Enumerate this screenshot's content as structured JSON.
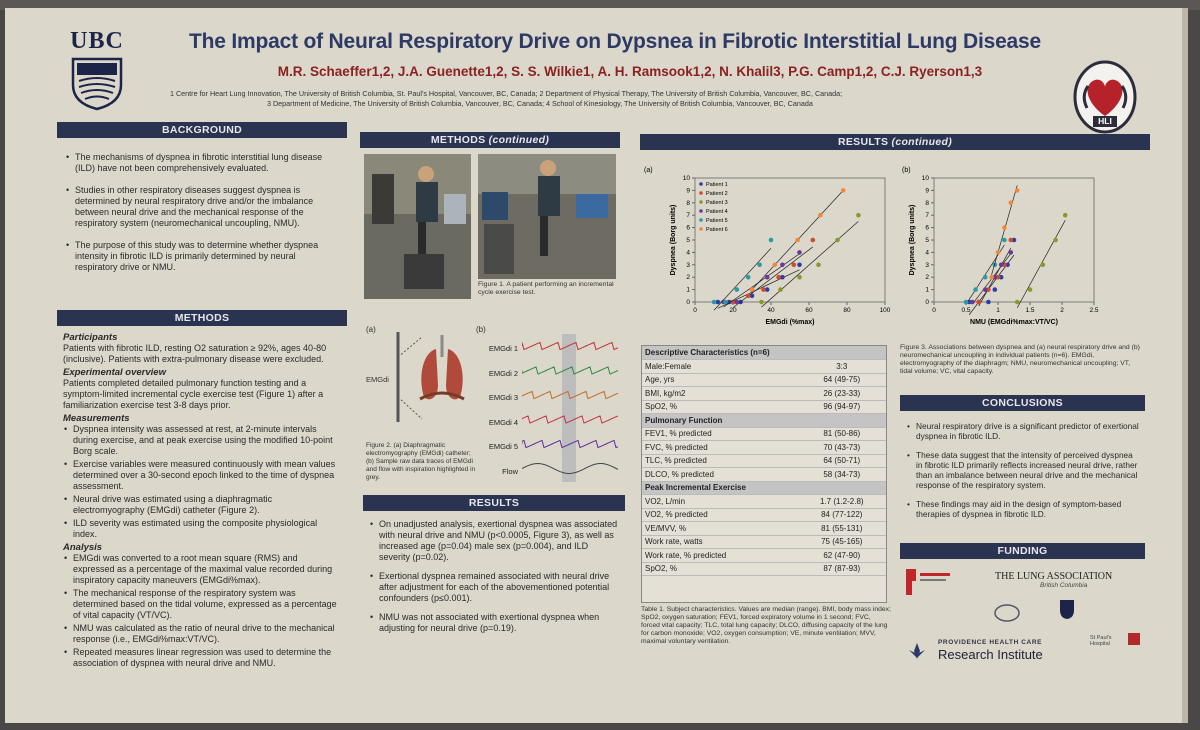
{
  "header": {
    "logo_left": "UBC",
    "logo_right": "HLI",
    "title": "The Impact of Neural Respiratory Drive on Dypsnea in Fibrotic Interstitial Lung Disease",
    "authors": "M.R. Schaeffer1,2, J.A. Guenette1,2, S. S. Wilkie1, A. H. Ramsook1,2, N. Khalil3, P.G. Camp1,2, C.J. Ryerson1,3",
    "affiliation_1": "1 Centre for Heart Lung Innovation, The University of British Columbia, St. Paul's Hospital, Vancouver, BC, Canada; 2 Department of Physical Therapy, The University of British Columbia, Vancouver, BC, Canada;",
    "affiliation_2": "3 Department of Medicine, The University of British Columbia, Vancouver, BC, Canada; 4 School of Kinesiology, The University of British Columbia, Vancouver, BC, Canada"
  },
  "background": {
    "heading": "BACKGROUND",
    "bullets": [
      "The mechanisms of dyspnea in fibrotic interstitial lung disease (ILD) have not been comprehensively evaluated.",
      "Studies in other respiratory diseases suggest dyspnea is determined by neural respiratory drive and/or the imbalance between neural drive and the mechanical response of the respiratory system (neuromechanical uncoupling, NMU).",
      "The purpose of this study was to determine whether dyspnea intensity in fibrotic ILD is primarily determined by neural respiratory drive or NMU."
    ]
  },
  "methods": {
    "heading": "METHODS",
    "participants_title": "Participants",
    "participants_text": "Patients with fibrotic ILD, resting O2 saturation ≥ 92%, ages 40-80 (inclusive). Patients with extra-pulmonary disease were excluded.",
    "overview_title": "Experimental overview",
    "overview_text": "Patients completed detailed pulmonary function testing and a symptom-limited incremental cycle exercise test (Figure 1) after a familiarization exercise test 3-8 days prior.",
    "measurements_title": "Measurements",
    "measurements": [
      "Dyspnea intensity was assessed at rest, at 2-minute intervals during exercise, and at peak exercise using the modified 10-point Borg scale.",
      "Exercise variables were measured continuously with mean values determined over a 30-second epoch linked to the time of dyspnea assessment.",
      "Neural drive was estimated using a diaphragmatic electromyography (EMGdi) catheter (Figure 2).",
      "ILD severity was estimated using the composite physiological index."
    ],
    "analysis_title": "Analysis",
    "analysis": [
      "EMGdi was converted to a root mean square (RMS) and expressed as a percentage of the maximal value recorded during inspiratory capacity maneuvers (EMGdi%max).",
      "The mechanical response of the respiratory system was determined based on the tidal volume, expressed as a percentage of vital capacity (VT/VC).",
      "NMU was calculated as the ratio of neural drive to the mechanical response (i.e., EMGdi%max:VT/VC).",
      "Repeated measures linear regression was used to determine the association of dyspnea with neural drive and NMU."
    ]
  },
  "methods_cont": {
    "heading": "METHODS",
    "heading_suffix": "(continued)",
    "figure1_caption": "Figure 1. A patient performing an incremental cycle exercise test.",
    "panel_a": "(a)",
    "panel_b": "(b)",
    "emgdi_label": "EMGdi",
    "traces": [
      "EMGdi 1",
      "EMGdi 2",
      "EMGdi 3",
      "EMGdi 4",
      "EMGdi 5",
      "Flow"
    ],
    "figure2_caption": "Figure 2. (a) Diaphragmatic electromyography (EMGdi) catheter; (b) Sample raw data traces of EMGdi and flow with inspiration highlighted in grey."
  },
  "results": {
    "heading": "RESULTS",
    "bullets": [
      "On unadjusted analysis, exertional dyspnea was associated with neural drive and NMU (p<0.0005, Figure 3), as well as increased age (p=0.04) male sex (p=0.004), and ILD severity (p=0.02).",
      "Exertional dyspnea remained associated with neural drive after adjustment for each of the abovementioned potential confounders (p≤0.001).",
      "NMU was not associated with exertional dyspnea when adjusting for neural drive (p=0.19)."
    ]
  },
  "results_cont": {
    "heading": "RESULTS",
    "heading_suffix": "(continued)",
    "figure3_caption": "Figure 3. Associations between dyspnea and (a) neural respiratory drive and (b) neuromechanical uncoupling in individual patients (n=6). EMGdi, electromyography of the diaphragm; NMU, neuromechanical uncoupling; VT, tidal volume; VC, vital capacity.",
    "table_title": "Descriptive Characteristics (n=6)",
    "rows_top": [
      [
        "Male:Female",
        "3:3"
      ],
      [
        "Age, yrs",
        "64 (49-75)"
      ],
      [
        "BMI, kg/m2",
        "26 (23-33)"
      ],
      [
        "SpO2, %",
        "96 (94-97)"
      ]
    ],
    "pf_title": "Pulmonary Function",
    "rows_pf": [
      [
        "FEV1, % predicted",
        "81 (50-86)"
      ],
      [
        "FVC, % predicted",
        "70 (43-73)"
      ],
      [
        "TLC, % predicted",
        "64 (50-71)"
      ],
      [
        "DLCO, % predicted",
        "58 (34-73)"
      ]
    ],
    "ex_title": "Peak Incremental Exercise",
    "rows_ex": [
      [
        "VO2, L/min",
        "1.7 (1.2-2.8)"
      ],
      [
        "VO2, % predicted",
        "84 (77-122)"
      ],
      [
        "VE/MVV, %",
        "81 (55-131)"
      ],
      [
        "Work rate, watts",
        "75 (45-165)"
      ],
      [
        "Work rate, % predicted",
        "62 (47-90)"
      ],
      [
        "SpO2, %",
        "87 (87-93)"
      ]
    ],
    "table_caption": "Table 1. Subject characteristics. Values are median (range). BMI, body mass index; SpO2, oxygen saturation; FEV1, forced expiratory volume in 1 second; FVC, forced vital capacity; TLC, total lung capacity; DLCO, diffusing capacity of the lung for carbon monoxide; VO2, oxygen consumption; VE, minute ventilation; MVV, maximal voluntary ventilation."
  },
  "conclusions": {
    "heading": "CONCLUSIONS",
    "bullets": [
      "Neural respiratory drive is a significant predictor of exertional dyspnea in fibrotic ILD.",
      "These data suggest that the intensity of perceived dyspnea in fibrotic ILD primarily reflects increased neural drive, rather than an imbalance between neural drive and the mechanical response of the respiratory system.",
      "These findings may aid in the design of symptom-based therapies of dyspnea in fibrotic ILD."
    ]
  },
  "funding": {
    "heading": "FUNDING",
    "lung_association": "THE LUNG ASSOCIATION",
    "lung_association_sub": "British Columbia",
    "phc": "PROVIDENCE HEALTH CARE",
    "research_institute": "Research Institute",
    "st_pauls": "St Paul's Hospital"
  },
  "chart_data": [
    {
      "type": "scatter",
      "panel": "(a)",
      "xlabel": "EMGdi (%max)",
      "ylabel": "Dyspnea (Borg units)",
      "xlim": [
        0,
        100
      ],
      "ylim": [
        0,
        10
      ],
      "xticks": [
        0,
        20,
        40,
        60,
        80,
        100
      ],
      "yticks": [
        0,
        1,
        2,
        3,
        4,
        5,
        6,
        7,
        8,
        9,
        10
      ],
      "series": [
        {
          "name": "Patient 1",
          "color": "#2b3fa8",
          "x": [
            12,
            18,
            24,
            30,
            38,
            46,
            55
          ],
          "y": [
            0,
            0,
            0,
            0.5,
            1,
            2,
            3
          ]
        },
        {
          "name": "Patient 2",
          "color": "#d24a2a",
          "x": [
            20,
            28,
            36,
            44,
            52,
            62
          ],
          "y": [
            0,
            0.5,
            1,
            2,
            3,
            5
          ]
        },
        {
          "name": "Patient 3",
          "color": "#8a9a2a",
          "x": [
            35,
            45,
            55,
            65,
            75,
            86
          ],
          "y": [
            0,
            1,
            2,
            3,
            5,
            7
          ]
        },
        {
          "name": "Patient 4",
          "color": "#6a3a9a",
          "x": [
            15,
            22,
            30,
            38,
            46,
            55
          ],
          "y": [
            0,
            0,
            1,
            2,
            3,
            4
          ]
        },
        {
          "name": "Patient 5",
          "color": "#2a9aa8",
          "x": [
            10,
            16,
            22,
            28,
            34,
            40
          ],
          "y": [
            0,
            0,
            1,
            2,
            3,
            5
          ]
        },
        {
          "name": "Patient 6",
          "color": "#f08a3a",
          "x": [
            30,
            42,
            54,
            66,
            78
          ],
          "y": [
            1,
            3,
            5,
            7,
            9
          ]
        }
      ],
      "legend": "top-left",
      "grid": false
    },
    {
      "type": "scatter",
      "panel": "(b)",
      "xlabel": "NMU (EMGdi%max:VT/VC)",
      "ylabel": "Dyspnea (Borg units)",
      "xlim": [
        0,
        2.5
      ],
      "ylim": [
        0,
        10
      ],
      "xticks": [
        0,
        0.5,
        1.0,
        1.5,
        2.0,
        2.5
      ],
      "yticks": [
        0,
        1,
        2,
        3,
        4,
        5,
        6,
        7,
        8,
        9,
        10
      ],
      "series": [
        {
          "name": "Patient 1",
          "color": "#2b3fa8",
          "x": [
            0.55,
            0.7,
            0.85,
            0.95,
            1.05,
            1.15,
            1.25
          ],
          "y": [
            0,
            0,
            0,
            1,
            2,
            3,
            5
          ]
        },
        {
          "name": "Patient 2",
          "color": "#d24a2a",
          "x": [
            0.7,
            0.85,
            1.0,
            1.1,
            1.2
          ],
          "y": [
            0,
            1,
            2,
            3,
            5
          ]
        },
        {
          "name": "Patient 3",
          "color": "#8a9a2a",
          "x": [
            1.3,
            1.5,
            1.7,
            1.9,
            2.05
          ],
          "y": [
            0,
            1,
            3,
            5,
            7
          ]
        },
        {
          "name": "Patient 4",
          "color": "#6a3a9a",
          "x": [
            0.6,
            0.8,
            0.95,
            1.05,
            1.2
          ],
          "y": [
            0,
            1,
            2,
            3,
            4
          ]
        },
        {
          "name": "Patient 5",
          "color": "#2a9aa8",
          "x": [
            0.5,
            0.65,
            0.8,
            0.95,
            1.1
          ],
          "y": [
            0,
            1,
            2,
            3,
            5
          ]
        },
        {
          "name": "Patient 6",
          "color": "#f08a3a",
          "x": [
            0.9,
            1.0,
            1.1,
            1.2,
            1.3
          ],
          "y": [
            2,
            4,
            6,
            8,
            9
          ]
        }
      ],
      "grid": false
    }
  ]
}
